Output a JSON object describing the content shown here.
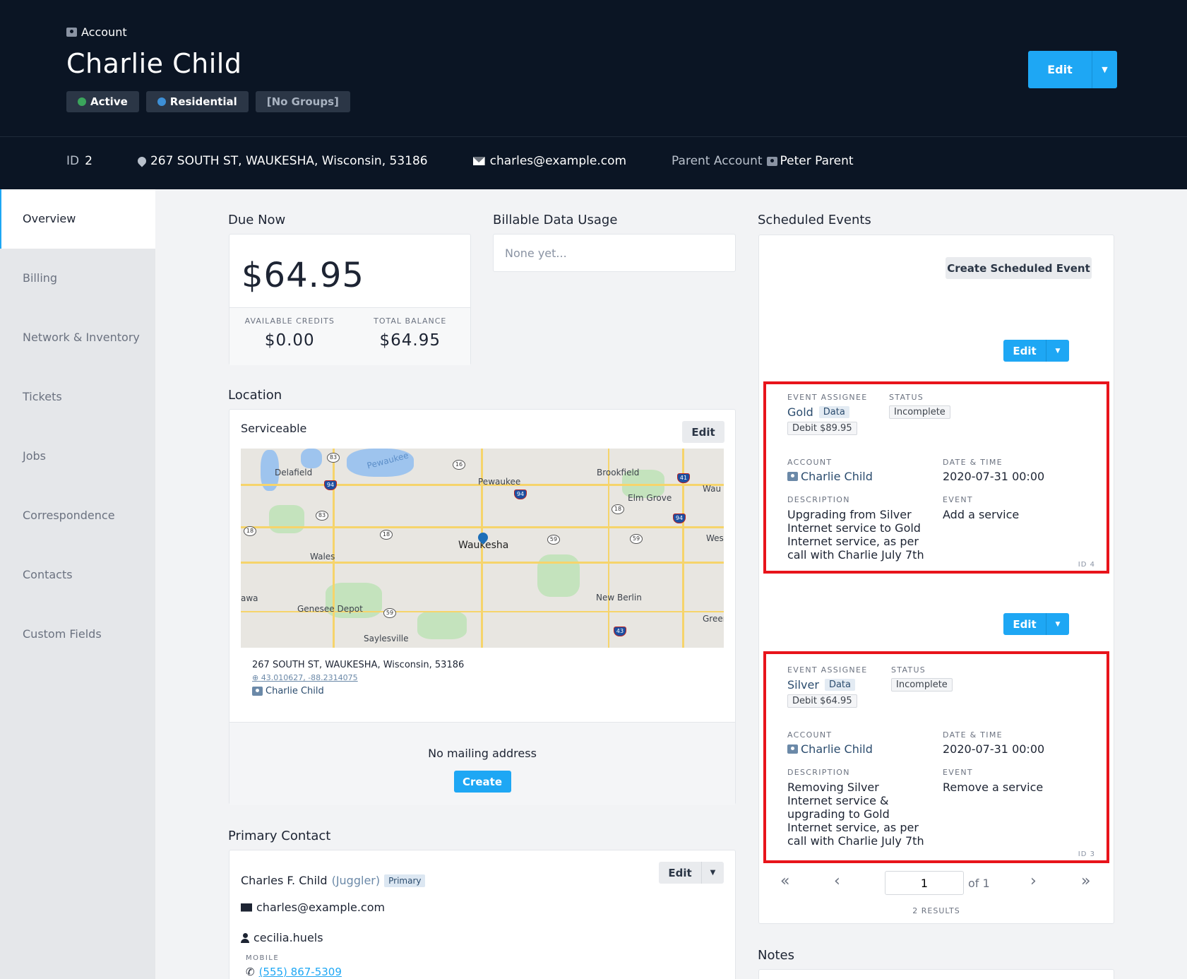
{
  "header": {
    "crumb": "Account",
    "title": "Charlie Child",
    "tags": [
      {
        "label": "Active",
        "color": "#3ba55c"
      },
      {
        "label": "Residential",
        "color": "#3d8fd6"
      },
      {
        "label": "[No Groups]"
      }
    ],
    "edit_label": "Edit",
    "id_label": "ID",
    "id_value": "2",
    "address": "267 SOUTH ST, WAUKESHA, Wisconsin, 53186",
    "email": "charles@example.com",
    "parent_label": "Parent Account",
    "parent_name": "Peter Parent"
  },
  "sidebar": {
    "items": [
      "Overview",
      "Billing",
      "Network & Inventory",
      "Tickets",
      "Jobs",
      "Correspondence",
      "Contacts",
      "Custom Fields"
    ],
    "active": "Overview"
  },
  "due_now": {
    "title": "Due Now",
    "amount": "$64.95",
    "credits_label": "AVAILABLE CREDITS",
    "credits": "$0.00",
    "balance_label": "TOTAL BALANCE",
    "balance": "$64.95"
  },
  "usage": {
    "title": "Billable Data Usage",
    "empty": "None yet..."
  },
  "location": {
    "title": "Location",
    "status": "Serviceable",
    "edit_label": "Edit",
    "map_labels": [
      "Pewaukee",
      "Delafield",
      "Pewaukee",
      "Brookfield",
      "Elm Grove",
      "Wau",
      "Waukesha",
      "Wales",
      "Wes",
      "awa",
      "Genesee Depot",
      "New Berlin",
      "Saylesville",
      "Greer"
    ],
    "address": "267 SOUTH ST, WAUKESHA, Wisconsin, 53186",
    "coords": "43.010627, -88.2314075",
    "owner": "Charlie Child",
    "mailing_text": "No mailing address",
    "create_label": "Create"
  },
  "primary_contact": {
    "title": "Primary Contact",
    "name": "Charles F. Child",
    "role": "(Juggler)",
    "badge": "Primary",
    "edit_label": "Edit",
    "email": "charles@example.com",
    "username": "cecilia.huels",
    "mobile_label": "MOBILE",
    "phone": "(555) 867-5309"
  },
  "events": {
    "title": "Scheduled Events",
    "create_label": "Create Scheduled Event",
    "edit_label": "Edit",
    "labels": {
      "assignee": "EVENT ASSIGNEE",
      "status": "STATUS",
      "account": "ACCOUNT",
      "datetime": "DATE & TIME",
      "description": "DESCRIPTION",
      "event": "EVENT"
    },
    "items": [
      {
        "assignee": "Gold",
        "tag": "Data",
        "debit": "Debit $89.95",
        "status": "Incomplete",
        "account": "Charlie Child",
        "datetime": "2020-07-31 00:00",
        "description": "Upgrading from Silver Internet service to Gold Internet service, as per call with Charlie July 7th",
        "event": "Add a service",
        "id": "ID 4"
      },
      {
        "assignee": "Silver",
        "tag": "Data",
        "debit": "Debit $64.95",
        "status": "Incomplete",
        "account": "Charlie Child",
        "datetime": "2020-07-31 00:00",
        "description": "Removing Silver Internet service & upgrading to Gold Internet service, as per call with Charlie July 7th",
        "event": "Remove a service",
        "id": "ID 3"
      }
    ],
    "pager": {
      "page": "1",
      "of": "of 1",
      "results": "2 RESULTS"
    }
  },
  "notes": {
    "title": "Notes"
  },
  "colors": {
    "header_bg": "#0b1524",
    "accent": "#1ea7f4",
    "highlight": "#e8141b"
  }
}
